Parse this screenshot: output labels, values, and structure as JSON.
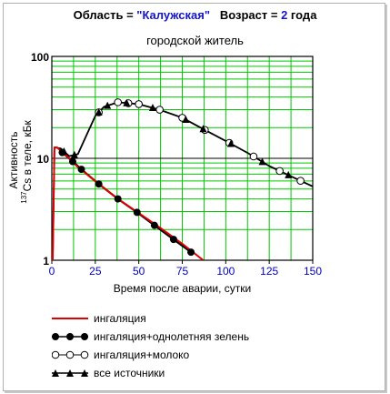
{
  "header": {
    "title_prefix": "Область = ",
    "region": "\"Калужская\"",
    "age_label": "   Возраст = ",
    "age_value": "2",
    "age_unit": " года",
    "subtitle": "городской житель"
  },
  "chart_data": {
    "type": "line",
    "xlabel": "Время после аварии, сутки",
    "ylabel_sup": "137",
    "ylabel_main": "Cs в теле, кБк",
    "ylabel_prefix": "Активность",
    "xlim": [
      0,
      150
    ],
    "ylim": [
      1,
      100
    ],
    "yscale": "log",
    "xticks": [
      0,
      25,
      50,
      75,
      100,
      125,
      150
    ],
    "yticks": [
      1,
      10,
      100
    ],
    "grid": true,
    "legend_position": "below-plot",
    "series": [
      {
        "name": "ингаляция",
        "color": "#e00000",
        "marker": "none",
        "points": [
          [
            0.5,
            1
          ],
          [
            1.5,
            12.8
          ],
          [
            3,
            12.8
          ],
          [
            10,
            10
          ],
          [
            15,
            8.2
          ],
          [
            20,
            7
          ],
          [
            27,
            5.6
          ],
          [
            38,
            4
          ],
          [
            50,
            2.9
          ],
          [
            62,
            2.1
          ],
          [
            75,
            1.45
          ],
          [
            82,
            1.17
          ],
          [
            87,
            1.0
          ]
        ]
      },
      {
        "name": "ингаляция+однолетняя зелень",
        "color": "#000000",
        "marker": "filled-circle",
        "points": [
          [
            6,
            11.4
          ],
          [
            12,
            9.3
          ],
          [
            17,
            7.8
          ],
          [
            27,
            5.6
          ],
          [
            38,
            4.0
          ],
          [
            49,
            2.95
          ],
          [
            59,
            2.2
          ],
          [
            70,
            1.6
          ],
          [
            80,
            1.2
          ]
        ]
      },
      {
        "name": "ингаляция+молоко",
        "color": "#000000",
        "marker": "open-circle",
        "points": [
          [
            0.5,
            1
          ],
          [
            1.5,
            12.8
          ],
          [
            5,
            12.5
          ],
          [
            10,
            10.5
          ],
          [
            15,
            11
          ],
          [
            20,
            17
          ],
          [
            25,
            26
          ],
          [
            30,
            32
          ],
          [
            38,
            35.5
          ],
          [
            50,
            34
          ],
          [
            62,
            30
          ],
          [
            75,
            25
          ],
          [
            88,
            19
          ],
          [
            100,
            14.8
          ],
          [
            113,
            11.2
          ],
          [
            125,
            8.4
          ],
          [
            138,
            6.6
          ],
          [
            150,
            5.3
          ]
        ],
        "marker_x": [
          27,
          38,
          44,
          50,
          62,
          75,
          88,
          102,
          116,
          131,
          143
        ]
      },
      {
        "name": "все источники",
        "color": "#000000",
        "marker": "filled-triangle",
        "points": [
          [
            0.5,
            1
          ],
          [
            1.5,
            12.8
          ],
          [
            5,
            12.5
          ],
          [
            10,
            10.5
          ],
          [
            15,
            11
          ],
          [
            20,
            17
          ],
          [
            25,
            26
          ],
          [
            30,
            32
          ],
          [
            38,
            35.5
          ],
          [
            50,
            34
          ],
          [
            62,
            30
          ],
          [
            75,
            25
          ],
          [
            88,
            19
          ],
          [
            100,
            14.8
          ],
          [
            113,
            11.2
          ],
          [
            125,
            8.4
          ],
          [
            138,
            6.6
          ],
          [
            150,
            5.3
          ]
        ],
        "marker_x": [
          7,
          13,
          27,
          32,
          43,
          58,
          77,
          87,
          103,
          121,
          136
        ]
      }
    ]
  }
}
